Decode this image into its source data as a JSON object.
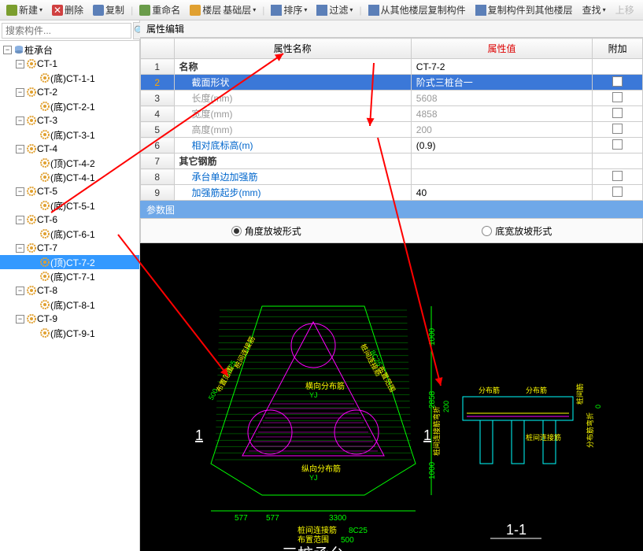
{
  "toolbar": {
    "items": [
      {
        "label": "新建",
        "icon": "#7b9e2e"
      },
      {
        "label": "删除",
        "icon": "#d04040"
      },
      {
        "label": "复制",
        "icon": "#5b7fb8"
      },
      {
        "label": "重命名",
        "icon": "#6a9c4a"
      },
      {
        "label": "楼层",
        "icon": "#e0a030",
        "sub": "基础层"
      },
      {
        "label": "排序",
        "icon": "#5b7fb8"
      },
      {
        "label": "过滤",
        "icon": "#5b7fb8"
      },
      {
        "label": "从其他楼层复制构件",
        "icon": "#5b7fb8"
      },
      {
        "label": "复制构件到其他楼层",
        "icon": "#5b7fb8"
      },
      {
        "label": "查找",
        "icon": "#5b7fb8"
      },
      {
        "label": "上移",
        "icon": "#999"
      }
    ]
  },
  "search": {
    "placeholder": "搜索构件..."
  },
  "tree": {
    "root": "桩承台",
    "nodes": [
      {
        "label": "CT-1",
        "children": [
          {
            "label": "(底)CT-1-1"
          }
        ]
      },
      {
        "label": "CT-2",
        "children": [
          {
            "label": "(底)CT-2-1"
          }
        ]
      },
      {
        "label": "CT-3",
        "children": [
          {
            "label": "(底)CT-3-1"
          }
        ]
      },
      {
        "label": "CT-4",
        "children": [
          {
            "label": "(顶)CT-4-2"
          },
          {
            "label": "(底)CT-4-1"
          }
        ]
      },
      {
        "label": "CT-5",
        "children": [
          {
            "label": "(底)CT-5-1"
          }
        ]
      },
      {
        "label": "CT-6",
        "children": [
          {
            "label": "(底)CT-6-1"
          }
        ]
      },
      {
        "label": "CT-7",
        "children": [
          {
            "label": "(顶)CT-7-2",
            "selected": true
          },
          {
            "label": "(底)CT-7-1"
          }
        ]
      },
      {
        "label": "CT-8",
        "children": [
          {
            "label": "(底)CT-8-1"
          }
        ]
      },
      {
        "label": "CT-9",
        "children": [
          {
            "label": "(底)CT-9-1"
          }
        ]
      }
    ]
  },
  "properties": {
    "title": "属性编辑",
    "headers": {
      "name": "属性名称",
      "value": "属性值",
      "extra": "附加"
    },
    "rows": [
      {
        "n": "1",
        "name": "名称",
        "val": "CT-7-2",
        "bold": true,
        "chk": false
      },
      {
        "n": "2",
        "name": "截面形状",
        "val": "阶式三桩台一",
        "indent": true,
        "selected": true,
        "chk": true
      },
      {
        "n": "3",
        "name": "长度(mm)",
        "val": "5608",
        "indent": true,
        "gray": true,
        "chk": true
      },
      {
        "n": "4",
        "name": "宽度(mm)",
        "val": "4858",
        "indent": true,
        "gray": true,
        "chk": true
      },
      {
        "n": "5",
        "name": "高度(mm)",
        "val": "200",
        "indent": true,
        "gray": true,
        "chk": true
      },
      {
        "n": "6",
        "name": "相对底标高(m)",
        "val": "(0.9)",
        "indent": true,
        "chk": true
      },
      {
        "n": "7",
        "name": "其它钢筋",
        "val": "",
        "bold": true,
        "chk": false
      },
      {
        "n": "8",
        "name": "承台单边加强筋",
        "val": "",
        "indent": true,
        "chk": true
      },
      {
        "n": "9",
        "name": "加强筋起步(mm)",
        "val": "40",
        "indent": true,
        "chk": true
      }
    ]
  },
  "param": {
    "title": "参数图",
    "opt1": "角度放坡形式",
    "opt2": "底宽放坡形式"
  },
  "diagram": {
    "title_main": "三桩承台一",
    "title_sec": "1-1",
    "colors": {
      "bg": "#000000",
      "green": "#00ff00",
      "magenta": "#ff00ff",
      "yellow": "#ffff00",
      "cyan": "#00ffff",
      "white": "#ffffff",
      "orange": "#ff8800"
    },
    "labels": {
      "h_top": "1000",
      "h_mid": "2858",
      "h_bot": "1000",
      "w1": "577",
      "w2": "577",
      "w3": "3300",
      "sec_h": "200",
      "pile_link": "桩间连接筋",
      "pile_code": "8C25",
      "range": "布置范围",
      "range_v": "500",
      "h_dist": "横向分布筋",
      "h_code": "YJ",
      "v_dist": "纵向分布筋",
      "v_code": "YJ",
      "dist": "分布筋",
      "bend": "桩间连接筋弯折",
      "dist_bend": "分布筋弯折",
      "mark": "1"
    }
  }
}
